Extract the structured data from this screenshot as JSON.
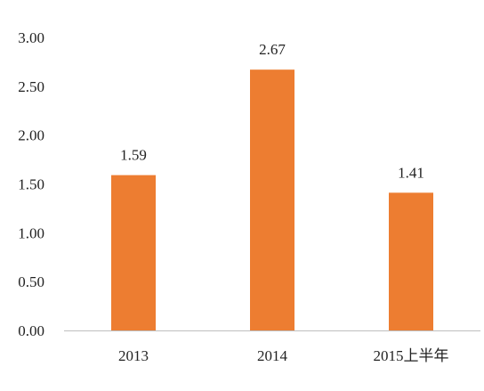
{
  "chart_data": {
    "type": "bar",
    "categories": [
      "2013",
      "2014",
      "2015上半年"
    ],
    "values": [
      1.59,
      2.67,
      1.41
    ],
    "data_labels": [
      "1.59",
      "2.67",
      "1.41"
    ],
    "y_ticks": [
      "0.00",
      "0.50",
      "1.00",
      "1.50",
      "2.00",
      "2.50",
      "3.00"
    ],
    "ylim": [
      0,
      3
    ],
    "grid": false,
    "legend": "none",
    "bar_color": "#ED7D31",
    "axis_color": "#BFBFBF"
  }
}
